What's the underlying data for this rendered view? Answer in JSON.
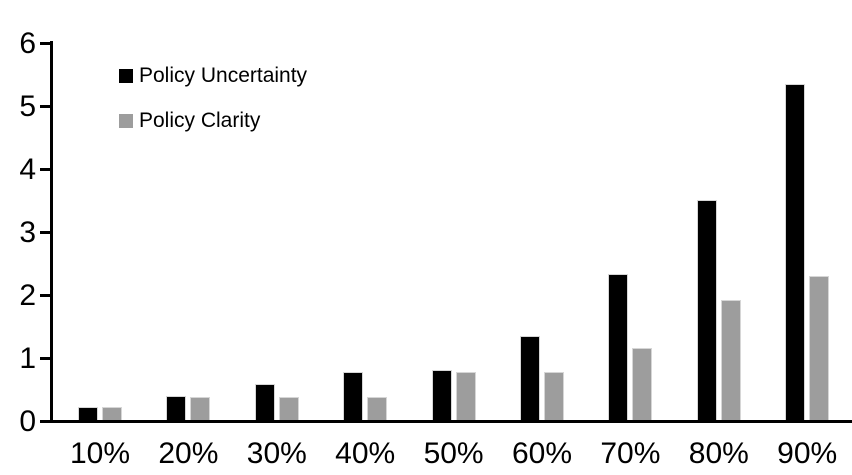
{
  "chart_data": {
    "type": "bar",
    "title": "",
    "xlabel": "",
    "ylabel": "",
    "categories": [
      "10%",
      "20%",
      "30%",
      "40%",
      "50%",
      "60%",
      "70%",
      "80%",
      "90%"
    ],
    "series": [
      {
        "name": "Policy Uncertainty",
        "color": "#000000",
        "values": [
          0.2,
          0.38,
          0.57,
          0.76,
          0.79,
          1.33,
          2.31,
          3.5,
          5.33
        ]
      },
      {
        "name": "Policy Clarity",
        "color": "#9d9d9d",
        "values": [
          0.2,
          0.37,
          0.37,
          0.37,
          0.76,
          0.76,
          1.14,
          1.9,
          2.29
        ]
      }
    ],
    "ylim": [
      0,
      6
    ],
    "yticks": [
      0,
      1,
      2,
      3,
      4,
      5,
      6
    ],
    "grid": false,
    "legend_position": "top-left",
    "background_color": "#ffffff",
    "axis_color": "#000000"
  }
}
